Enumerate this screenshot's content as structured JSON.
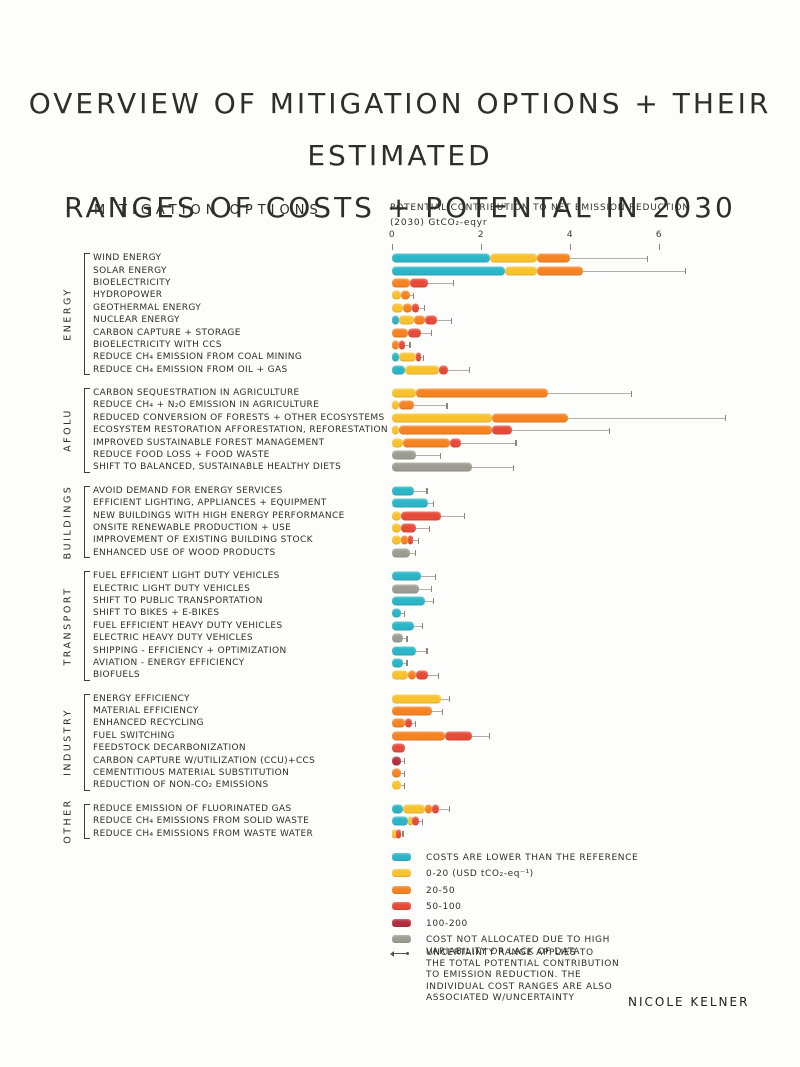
{
  "title": {
    "line1": "OVERVIEW OF MITIGATION OPTIONS + THEIR ESTIMATED",
    "line2": "RANGES OF COSTS + POTENTAL IN 2030"
  },
  "headers": {
    "mitigation_options": "MITIGATION OPTIONS",
    "potential_line1": "POTENTIAL CONTRIBUTION TO NET EMISSION REDUCTION",
    "potential_line2": "(2030) GtCO₂-eqyr"
  },
  "chart_data": {
    "type": "bar",
    "orientation": "horizontal-stacked-cost-ranges",
    "x_axis": {
      "ticks": [
        0,
        2,
        4,
        6
      ],
      "label": "POTENTIAL CONTRIBUTION TO NET EMISSION REDUCTION (2030) GtCO₂-eqyr",
      "max": 7.6,
      "grid": false
    },
    "cost_colors": {
      "reference": "#2bb5c6",
      "c0_20": "#f9c22d",
      "c20_50": "#f58322",
      "c50_100": "#e64a38",
      "c100_200": "#b22e3e",
      "not_allocated": "#9c9c92"
    },
    "sections": [
      {
        "name": "ENERGY",
        "items": [
          {
            "label": "WIND ENERGY",
            "segments": [
              [
                "reference",
                0,
                2.2
              ],
              [
                "c0_20",
                2.2,
                3.25
              ],
              [
                "c20_50",
                3.25,
                4.0
              ]
            ],
            "whisker": 5.75
          },
          {
            "label": "SOLAR ENERGY",
            "segments": [
              [
                "reference",
                0,
                2.55
              ],
              [
                "c0_20",
                2.55,
                3.25
              ],
              [
                "c20_50",
                3.25,
                4.3
              ]
            ],
            "whisker": 6.6
          },
          {
            "label": "BIOELECTRICITY",
            "segments": [
              [
                "c20_50",
                0,
                0.4
              ],
              [
                "c50_100",
                0.4,
                0.8
              ]
            ],
            "whisker": 1.4
          },
          {
            "label": "HYDROPOWER",
            "segments": [
              [
                "c0_20",
                0,
                0.2
              ],
              [
                "c20_50",
                0.2,
                0.4
              ]
            ],
            "whisker": 0.5
          },
          {
            "label": "GEOTHERMAL ENERGY",
            "segments": [
              [
                "c0_20",
                0,
                0.25
              ],
              [
                "c20_50",
                0.25,
                0.45
              ],
              [
                "c50_100",
                0.45,
                0.6
              ]
            ],
            "whisker": 0.75
          },
          {
            "label": "NUCLEAR ENERGY",
            "segments": [
              [
                "reference",
                0,
                0.15
              ],
              [
                "c0_20",
                0.15,
                0.5
              ],
              [
                "c20_50",
                0.5,
                0.75
              ],
              [
                "c50_100",
                0.75,
                1.0
              ]
            ],
            "whisker": 1.35
          },
          {
            "label": "CARBON CAPTURE + STORAGE",
            "segments": [
              [
                "c20_50",
                0,
                0.35
              ],
              [
                "c50_100",
                0.35,
                0.65
              ]
            ],
            "whisker": 0.9
          },
          {
            "label": "BIOELECTRICITY WITH CCS",
            "segments": [
              [
                "c20_50",
                0,
                0.15
              ],
              [
                "c50_100",
                0.15,
                0.3
              ]
            ],
            "whisker": 0.42
          },
          {
            "label": "REDUCE CH₄ EMISSION FROM COAL MINING",
            "segments": [
              [
                "reference",
                0,
                0.15
              ],
              [
                "c0_20",
                0.15,
                0.55
              ],
              [
                "c50_100",
                0.55,
                0.65
              ]
            ],
            "whisker": 0.72
          },
          {
            "label": "REDUCE CH₄ EMISSION FROM OIL + GAS",
            "segments": [
              [
                "reference",
                0,
                0.3
              ],
              [
                "c0_20",
                0.3,
                1.05
              ],
              [
                "c50_100",
                1.05,
                1.25
              ]
            ],
            "whisker": 1.75
          }
        ]
      },
      {
        "name": "AFOLU",
        "items": [
          {
            "label": "CARBON SEQUESTRATION IN AGRICULTURE",
            "segments": [
              [
                "c0_20",
                0,
                0.55
              ],
              [
                "c20_50",
                0.55,
                3.5
              ]
            ],
            "whisker": 5.4
          },
          {
            "label": "REDUCE CH₄ + N₂O EMISSION IN AGRICULTURE",
            "segments": [
              [
                "c0_20",
                0,
                0.15
              ],
              [
                "c20_50",
                0.15,
                0.5
              ]
            ],
            "whisker": 1.25
          },
          {
            "label": "REDUCED CONVERSION OF FORESTS + OTHER ECOSYSTEMS",
            "segments": [
              [
                "c0_20",
                0,
                2.25
              ],
              [
                "c20_50",
                2.25,
                3.95
              ]
            ],
            "whisker": 7.5
          },
          {
            "label": "ECOSYSTEM RESTORATION AFFORESTATION, REFORESTATION",
            "segments": [
              [
                "c0_20",
                0,
                0.15
              ],
              [
                "c20_50",
                0.15,
                2.25
              ],
              [
                "c50_100",
                2.25,
                2.7
              ]
            ],
            "whisker": 4.9
          },
          {
            "label": "IMPROVED SUSTAINABLE FOREST MANAGEMENT",
            "segments": [
              [
                "c0_20",
                0,
                0.25
              ],
              [
                "c20_50",
                0.25,
                1.3
              ],
              [
                "c50_100",
                1.3,
                1.55
              ]
            ],
            "whisker": 2.8
          },
          {
            "label": "REDUCE FOOD LOSS + FOOD WASTE",
            "segments": [
              [
                "not_allocated",
                0,
                0.55
              ]
            ],
            "whisker": 1.1
          },
          {
            "label": "SHIFT TO BALANCED, SUSTAINABLE HEALTHY DIETS",
            "segments": [
              [
                "not_allocated",
                0,
                1.8
              ]
            ],
            "whisker": 2.75
          }
        ]
      },
      {
        "name": "BUILDINGS",
        "items": [
          {
            "label": "AVOID DEMAND FOR ENERGY SERVICES",
            "segments": [
              [
                "reference",
                0,
                0.5
              ]
            ],
            "whisker": 0.8
          },
          {
            "label": "EFFICIENT LIGHTING, APPLIANCES + EQUIPMENT",
            "segments": [
              [
                "reference",
                0,
                0.8
              ]
            ],
            "whisker": 0.95
          },
          {
            "label": "NEW BUILDINGS WITH HIGH ENERGY PERFORMANCE",
            "segments": [
              [
                "c0_20",
                0,
                0.2
              ],
              [
                "c50_100",
                0.2,
                1.1
              ]
            ],
            "whisker": 1.65
          },
          {
            "label": "ONSITE RENEWABLE PRODUCTION + USE",
            "segments": [
              [
                "c0_20",
                0,
                0.2
              ],
              [
                "c50_100",
                0.2,
                0.55
              ]
            ],
            "whisker": 0.85
          },
          {
            "label": "IMPROVEMENT OF EXISTING BUILDING STOCK",
            "segments": [
              [
                "c0_20",
                0,
                0.2
              ],
              [
                "c20_50",
                0.2,
                0.35
              ],
              [
                "c50_100",
                0.35,
                0.45
              ]
            ],
            "whisker": 0.6
          },
          {
            "label": "ENHANCED USE OF WOOD PRODUCTS",
            "segments": [
              [
                "not_allocated",
                0,
                0.4
              ]
            ],
            "whisker": 0.55
          }
        ]
      },
      {
        "name": "TRANSPORT",
        "items": [
          {
            "label": "FUEL EFFICIENT LIGHT DUTY VEHICLES",
            "segments": [
              [
                "reference",
                0,
                0.65
              ]
            ],
            "whisker": 1.0
          },
          {
            "label": "ELECTRIC LIGHT DUTY VEHICLES",
            "segments": [
              [
                "not_allocated",
                0,
                0.6
              ]
            ],
            "whisker": 0.9
          },
          {
            "label": "SHIFT TO PUBLIC TRANSPORTATION",
            "segments": [
              [
                "reference",
                0,
                0.75
              ]
            ],
            "whisker": 0.95
          },
          {
            "label": "SHIFT TO BIKES + E-BIKES",
            "segments": [
              [
                "reference",
                0,
                0.2
              ]
            ],
            "whisker": 0.3
          },
          {
            "label": "FUEL EFFICIENT HEAVY DUTY VEHICLES",
            "segments": [
              [
                "reference",
                0,
                0.5
              ]
            ],
            "whisker": 0.7
          },
          {
            "label": "ELECTRIC HEAVY DUTY VEHICLES",
            "segments": [
              [
                "not_allocated",
                0,
                0.25
              ]
            ],
            "whisker": 0.35
          },
          {
            "label": "SHIPPING - EFFICIENCY + OPTIMIZATION",
            "segments": [
              [
                "reference",
                0,
                0.55
              ]
            ],
            "whisker": 0.8
          },
          {
            "label": "AVIATION - ENERGY EFFICIENCY",
            "segments": [
              [
                "reference",
                0,
                0.25
              ]
            ],
            "whisker": 0.35
          },
          {
            "label": "BIOFUELS",
            "segments": [
              [
                "c0_20",
                0,
                0.35
              ],
              [
                "c20_50",
                0.35,
                0.55
              ],
              [
                "c50_100",
                0.55,
                0.8
              ]
            ],
            "whisker": 1.05
          }
        ]
      },
      {
        "name": "INDUSTRY",
        "items": [
          {
            "label": "ENERGY EFFICIENCY",
            "segments": [
              [
                "c0_20",
                0,
                1.1
              ]
            ],
            "whisker": 1.3
          },
          {
            "label": "MATERIAL EFFICIENCY",
            "segments": [
              [
                "c20_50",
                0,
                0.9
              ]
            ],
            "whisker": 1.15
          },
          {
            "label": "ENHANCED RECYCLING",
            "segments": [
              [
                "c20_50",
                0,
                0.3
              ],
              [
                "c50_100",
                0.3,
                0.45
              ]
            ],
            "whisker": 0.55
          },
          {
            "label": "FUEL SWITCHING",
            "segments": [
              [
                "c20_50",
                0,
                1.2
              ],
              [
                "c50_100",
                1.2,
                1.8
              ]
            ],
            "whisker": 2.2
          },
          {
            "label": "FEEDSTOCK DECARBONIZATION",
            "segments": [
              [
                "c50_100",
                0,
                0.3
              ]
            ],
            "whisker": 0.3
          },
          {
            "label": "CARBON CAPTURE W/UTILIZATION (CCU)+CCS",
            "segments": [
              [
                "c100_200",
                0,
                0.2
              ]
            ],
            "whisker": 0.3
          },
          {
            "label": "CEMENTITIOUS MATERIAL SUBSTITUTION",
            "segments": [
              [
                "c20_50",
                0,
                0.2
              ]
            ],
            "whisker": 0.3
          },
          {
            "label": "REDUCTION OF NON-CO₂ EMISSIONS",
            "segments": [
              [
                "c0_20",
                0,
                0.2
              ]
            ],
            "whisker": 0.3
          }
        ]
      },
      {
        "name": "OTHER",
        "items": [
          {
            "label": "REDUCE EMISSION OF FLUORINATED GAS",
            "segments": [
              [
                "reference",
                0,
                0.25
              ],
              [
                "c0_20",
                0.25,
                0.75
              ],
              [
                "c20_50",
                0.75,
                0.9
              ],
              [
                "c50_100",
                0.9,
                1.05
              ]
            ],
            "whisker": 1.3
          },
          {
            "label": "REDUCE CH₄ EMISSIONS FROM SOLID WASTE",
            "segments": [
              [
                "reference",
                0,
                0.35
              ],
              [
                "c0_20",
                0.35,
                0.45
              ],
              [
                "c50_100",
                0.45,
                0.6
              ]
            ],
            "whisker": 0.7
          },
          {
            "label": "REDUCE CH₄ EMISSIONS FROM WASTE WATER",
            "segments": [
              [
                "c0_20",
                0,
                0.1
              ],
              [
                "c50_100",
                0.1,
                0.2
              ]
            ],
            "whisker": 0.26
          }
        ]
      }
    ]
  },
  "legend": {
    "items": [
      {
        "color": "reference",
        "label": "COSTS ARE LOWER THAN THE REFERENCE"
      },
      {
        "color": "c0_20",
        "label": "0-20 (USD tCO₂-eq⁻¹)"
      },
      {
        "color": "c20_50",
        "label": "20-50"
      },
      {
        "color": "c50_100",
        "label": "50-100"
      },
      {
        "color": "c100_200",
        "label": "100-200"
      },
      {
        "color": "not_allocated",
        "label": "COST NOT ALLOCATED DUE TO HIGH\nVARIABILITY OR LACK OF DATA"
      }
    ]
  },
  "footnote": {
    "lines": [
      "UNCERTAINTY RANGE APPLIES TO",
      "THE TOTAL POTENTIAL CONTRIBUTION",
      "TO EMISSION REDUCTION. THE",
      "INDIVIDUAL COST RANGES ARE ALSO",
      "ASSOCIATED W/UNCERTAINTY"
    ]
  },
  "signature": "NICOLE KELNER",
  "palette": {
    "background": "#fdfdfb",
    "ink": "#333333",
    "whisker": "#b5aea4"
  }
}
